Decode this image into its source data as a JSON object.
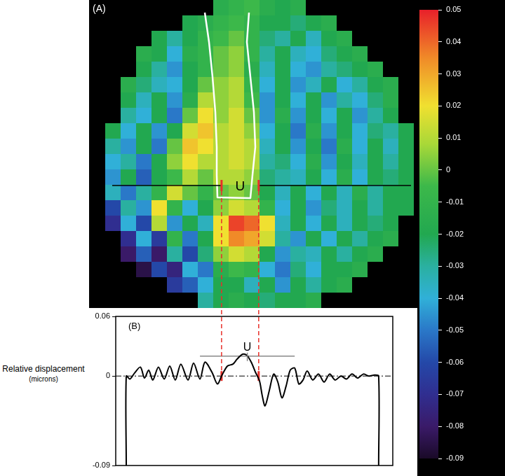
{
  "chart_data": [
    {
      "type": "heatmap",
      "panel_label": "(A)",
      "region_label": "U",
      "cells": [
        [
          null,
          null,
          null,
          null,
          null,
          null,
          null,
          -0.015,
          -0.01,
          -0.005,
          -0.015,
          -0.02,
          -0.015,
          null,
          null,
          null,
          null,
          null,
          null,
          null
        ],
        [
          null,
          null,
          null,
          null,
          null,
          -0.02,
          -0.015,
          -0.01,
          -0.005,
          -0.01,
          -0.02,
          -0.02,
          -0.025,
          -0.02,
          -0.015,
          null,
          null,
          null,
          null,
          null
        ],
        [
          null,
          null,
          null,
          -0.02,
          -0.03,
          -0.02,
          -0.01,
          -0.005,
          0,
          -0.01,
          -0.025,
          -0.03,
          -0.02,
          -0.035,
          -0.02,
          -0.015,
          null,
          null,
          null,
          null
        ],
        [
          null,
          null,
          -0.015,
          -0.02,
          -0.04,
          -0.015,
          -0.01,
          0,
          0.005,
          -0.01,
          -0.03,
          -0.02,
          -0.035,
          -0.04,
          -0.025,
          -0.02,
          -0.015,
          null,
          null,
          null
        ],
        [
          null,
          null,
          -0.02,
          -0.03,
          -0.045,
          -0.02,
          -0.01,
          0,
          0.005,
          -0.015,
          -0.035,
          -0.02,
          -0.04,
          -0.045,
          -0.03,
          -0.025,
          -0.02,
          -0.015,
          null,
          null
        ],
        [
          null,
          -0.015,
          -0.025,
          -0.035,
          -0.04,
          -0.02,
          0,
          0.005,
          0.01,
          -0.01,
          -0.04,
          -0.02,
          -0.045,
          -0.035,
          -0.02,
          -0.04,
          -0.03,
          -0.02,
          -0.015,
          null
        ],
        [
          null,
          -0.02,
          -0.035,
          -0.02,
          -0.045,
          -0.015,
          0.01,
          0.005,
          0.01,
          -0.005,
          -0.045,
          -0.02,
          -0.04,
          -0.02,
          -0.045,
          -0.03,
          -0.04,
          -0.025,
          -0.015,
          null
        ],
        [
          null,
          -0.03,
          -0.04,
          -0.02,
          -0.05,
          0,
          0.02,
          0.005,
          0.015,
          0,
          -0.045,
          -0.015,
          -0.045,
          -0.02,
          -0.04,
          -0.02,
          -0.045,
          -0.03,
          -0.02,
          null
        ],
        [
          -0.02,
          -0.04,
          -0.02,
          -0.045,
          -0.02,
          0.015,
          0.025,
          0.01,
          0.015,
          0.005,
          -0.04,
          -0.02,
          -0.05,
          -0.015,
          -0.045,
          -0.02,
          -0.04,
          -0.025,
          -0.03,
          -0.02
        ],
        [
          -0.03,
          -0.045,
          -0.02,
          -0.05,
          0,
          0.025,
          0.02,
          0.01,
          0.015,
          0.01,
          -0.035,
          -0.02,
          -0.045,
          -0.02,
          -0.05,
          -0.015,
          -0.04,
          -0.02,
          -0.035,
          -0.02
        ],
        [
          -0.04,
          -0.03,
          -0.05,
          -0.02,
          0.005,
          0.02,
          0.01,
          0.01,
          0.015,
          0.01,
          -0.03,
          -0.025,
          -0.04,
          -0.015,
          -0.045,
          -0.02,
          -0.035,
          -0.02,
          -0.03,
          -0.02
        ],
        [
          -0.045,
          -0.02,
          -0.055,
          -0.02,
          -0.005,
          0.01,
          0,
          0.01,
          0.01,
          0.005,
          -0.025,
          -0.03,
          -0.035,
          -0.02,
          -0.04,
          -0.015,
          -0.04,
          -0.02,
          -0.025,
          -0.02
        ],
        [
          -0.035,
          -0.05,
          -0.03,
          -0.01,
          0.015,
          0,
          -0.01,
          0,
          0.005,
          0,
          -0.02,
          -0.035,
          -0.02,
          -0.04,
          -0.02,
          -0.035,
          -0.015,
          -0.03,
          -0.02,
          -0.02
        ],
        [
          -0.06,
          -0.03,
          -0.045,
          0.02,
          -0.01,
          -0.04,
          -0.02,
          0.005,
          0.015,
          0.01,
          -0.01,
          -0.04,
          -0.02,
          -0.045,
          -0.025,
          -0.035,
          -0.02,
          -0.03,
          -0.02,
          -0.02
        ],
        [
          -0.07,
          -0.04,
          -0.06,
          0.01,
          -0.045,
          -0.02,
          -0.035,
          0.02,
          0.045,
          0.04,
          0.02,
          -0.035,
          -0.02,
          -0.04,
          -0.02,
          -0.035,
          -0.02,
          -0.025,
          -0.02,
          null
        ],
        [
          null,
          -0.07,
          -0.04,
          -0.065,
          -0.01,
          -0.05,
          -0.02,
          0.02,
          0.035,
          0.03,
          0.015,
          -0.03,
          -0.045,
          -0.02,
          -0.04,
          -0.02,
          -0.03,
          -0.02,
          -0.015,
          null
        ],
        [
          null,
          -0.08,
          -0.055,
          -0.08,
          -0.03,
          -0.06,
          -0.025,
          0.005,
          0.015,
          0.01,
          -0.02,
          -0.045,
          -0.03,
          -0.035,
          -0.02,
          -0.03,
          -0.02,
          -0.015,
          null,
          null
        ],
        [
          null,
          null,
          -0.085,
          -0.06,
          -0.075,
          -0.04,
          -0.05,
          -0.015,
          -0.005,
          -0.01,
          -0.04,
          -0.05,
          -0.025,
          -0.04,
          -0.02,
          -0.02,
          -0.015,
          null,
          null,
          null
        ],
        [
          null,
          null,
          null,
          null,
          -0.065,
          -0.055,
          -0.04,
          -0.02,
          -0.02,
          -0.035,
          -0.02,
          -0.045,
          -0.02,
          -0.03,
          -0.02,
          -0.015,
          null,
          null,
          null,
          null
        ],
        [
          null,
          null,
          null,
          null,
          null,
          null,
          -0.03,
          -0.02,
          -0.015,
          -0.02,
          -0.025,
          -0.02,
          -0.02,
          -0.015,
          null,
          null,
          null,
          null,
          null,
          null
        ]
      ],
      "colorbar": {
        "range": [
          -0.09,
          0.05
        ],
        "ticks": [
          0.05,
          0.04,
          0.03,
          0.02,
          0.01,
          0,
          -0.01,
          -0.02,
          -0.03,
          -0.04,
          -0.05,
          -0.06,
          -0.07,
          -0.08,
          -0.09
        ]
      }
    },
    {
      "type": "line",
      "panel_label": "(B)",
      "y_label": [
        "Relative displacement",
        "(microns)"
      ],
      "x": [
        3.8,
        3.8,
        5.1,
        6.8,
        8.9,
        10.4,
        11.9,
        13.4,
        15.4,
        17.5,
        19.5,
        21.5,
        23.5,
        26.1,
        28.1,
        30.4,
        32.2,
        34.7,
        36.7,
        38.2,
        40.3,
        42.3,
        43.8,
        45.8,
        47.3,
        48.9,
        50.4,
        51.9,
        52.9,
        53.9,
        55.4,
        57.0,
        58.5,
        60.0,
        61.5,
        63.0,
        64.6,
        66.1,
        67.6,
        69.1,
        71.1,
        73.2,
        75.2,
        77.2,
        79.2,
        81.3,
        83.3,
        85.3,
        87.3,
        89.4,
        91.4,
        93.4,
        94.9,
        94.9
      ],
      "values": [
        -0.09,
        0,
        -0.003,
        0.003,
        0.009,
        -0.002,
        0.006,
        -0.004,
        0.009,
        -0.003,
        0.01,
        -0.004,
        0.012,
        -0.004,
        0.013,
        -0.003,
        0.014,
        0.004,
        -0.008,
        0,
        0.01,
        0.012,
        0.017,
        0.022,
        0.021,
        0.014,
        0.004,
        -0.005,
        -0.02,
        -0.03,
        -0.015,
        0.002,
        -0.006,
        -0.022,
        -0.01,
        0.006,
        0.008,
        -0.008,
        -0.004,
        0.005,
        -0.004,
        0.002,
        -0.006,
        0.002,
        -0.004,
        0,
        -0.003,
        0.002,
        -0.002,
        0.002,
        0,
        0.001,
        0,
        -0.09
      ],
      "color": "#000000",
      "xlim": [
        0,
        100
      ],
      "ylim": [
        -0.09,
        0.06
      ],
      "yticks": [
        -0.09,
        0,
        0.06
      ],
      "tick_labels": "y",
      "grid": false,
      "region": {
        "label": "U",
        "x": [
          30.4,
          64.6
        ],
        "y": 0.02,
        "color": "#888888"
      },
      "markers": {
        "x": [
          38.2,
          51.6
        ],
        "y": 0,
        "color": "#e8302a"
      }
    }
  ]
}
